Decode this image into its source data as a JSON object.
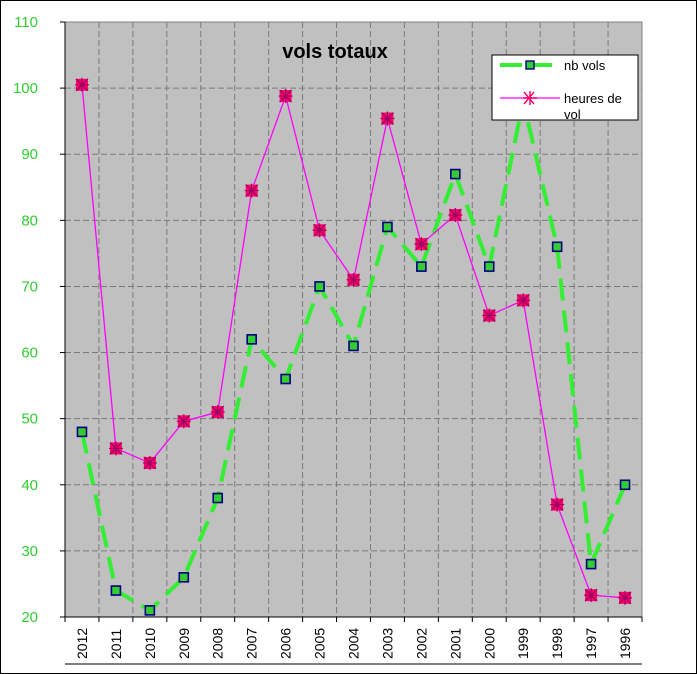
{
  "chart_data": {
    "type": "line",
    "title": "vols totaux",
    "categories": [
      "2012",
      "2011",
      "2010",
      "2009",
      "2008",
      "2007",
      "2006",
      "2005",
      "2004",
      "2003",
      "2002",
      "2001",
      "2000",
      "1999",
      "1998",
      "1997",
      "1996"
    ],
    "ylim": [
      20,
      110
    ],
    "yticks": [
      20,
      30,
      40,
      50,
      60,
      70,
      80,
      90,
      100,
      110
    ],
    "grid": true,
    "legend_position": "top-right",
    "plot_background": "#c0c0c0",
    "series": [
      {
        "name": "nb vols",
        "color": "#33ee33",
        "marker": "square",
        "marker_fill": "#33cc33",
        "marker_edge": "#000080",
        "line_style": "dashed",
        "values": [
          48,
          24,
          21,
          26,
          38,
          62,
          56,
          70,
          61,
          79,
          73,
          87,
          73,
          98,
          76,
          28,
          40
        ]
      },
      {
        "name": "heures de vol",
        "color": "#ff00ff",
        "marker": "star",
        "marker_fill": "#ff0066",
        "line_style": "solid",
        "values": [
          100.5,
          45.5,
          43.3,
          49.6,
          51,
          84.5,
          98.8,
          78.5,
          71,
          95.4,
          76.4,
          80.8,
          65.6,
          67.9,
          37,
          23.3,
          22.9
        ]
      }
    ]
  }
}
